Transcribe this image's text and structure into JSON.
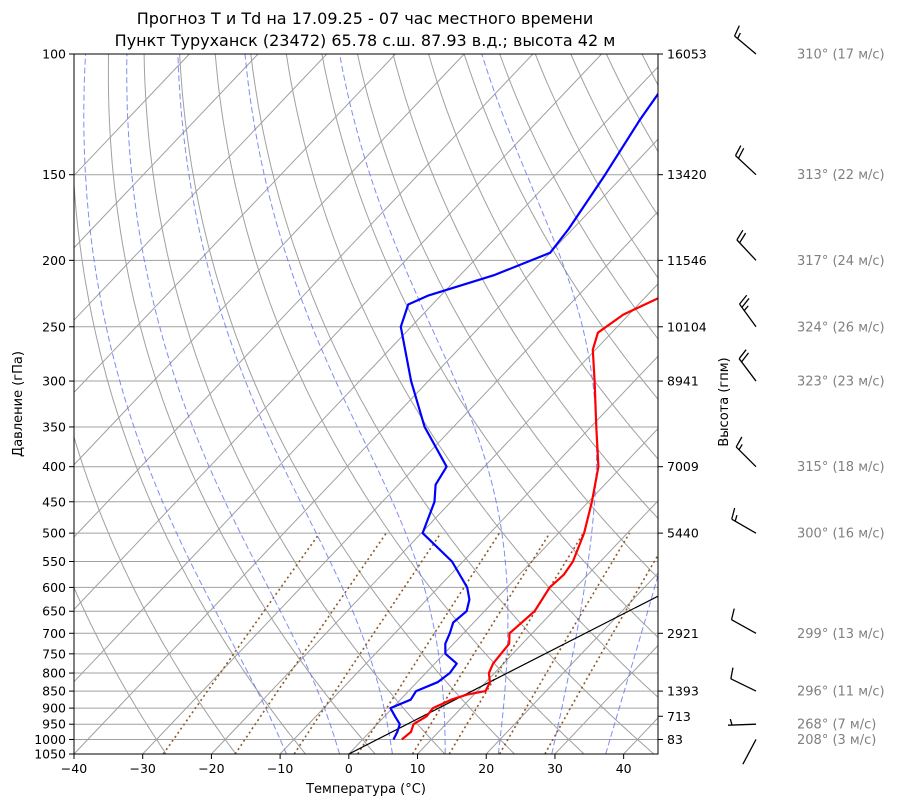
{
  "chart_data": {
    "type": "line",
    "subtype": "skew-T log-p sounding",
    "title": "Прогноз T и Td на 17.09.25 - 07 час местного времени",
    "subtitle": "Пункт Туруханск (23472) 65.78 с.ш. 87.93 в.д.; высота 42 м",
    "xlabel": "Температура (°C)",
    "ylabel": "Давление (гПа)",
    "y2label": "Высота (гпм)",
    "xlim": [
      -40,
      45
    ],
    "ylim": [
      1050,
      100
    ],
    "yscale": "log",
    "x_ticks": [
      -40,
      -30,
      -20,
      -10,
      0,
      10,
      20,
      30,
      40
    ],
    "y_ticks": [
      1050,
      1000,
      950,
      900,
      850,
      800,
      750,
      700,
      650,
      600,
      550,
      500,
      450,
      400,
      350,
      300,
      250,
      200,
      150,
      100
    ],
    "height_ticks": [
      {
        "p": 100,
        "h": "16053"
      },
      {
        "p": 150,
        "h": "13420"
      },
      {
        "p": 200,
        "h": "11546"
      },
      {
        "p": 250,
        "h": "10104"
      },
      {
        "p": 300,
        "h": "8941"
      },
      {
        "p": 400,
        "h": "7009"
      },
      {
        "p": 500,
        "h": "5440"
      },
      {
        "p": 700,
        "h": "2921"
      },
      {
        "p": 850,
        "h": "1393"
      },
      {
        "p": 925,
        "h": "713"
      },
      {
        "p": 1000,
        "h": "83"
      }
    ],
    "grid": true,
    "series": [
      {
        "color": "#ff0000",
        "points": [
          [
            1000,
            5.7
          ],
          [
            975,
            6.0
          ],
          [
            950,
            5.3
          ],
          [
            925,
            6.1
          ],
          [
            900,
            5.9
          ],
          [
            875,
            7.4
          ],
          [
            860,
            9.0
          ],
          [
            850,
            11.2
          ],
          [
            825,
            10.6
          ],
          [
            800,
            9.2
          ],
          [
            775,
            8.5
          ],
          [
            750,
            8.3
          ],
          [
            725,
            8.1
          ],
          [
            700,
            6.7
          ],
          [
            650,
            7.3
          ],
          [
            600,
            6.2
          ],
          [
            575,
            6.5
          ],
          [
            550,
            6.0
          ],
          [
            500,
            3.7
          ],
          [
            450,
            0.5
          ],
          [
            400,
            -3.4
          ],
          [
            350,
            -9.2
          ],
          [
            300,
            -15.8
          ],
          [
            270,
            -20.4
          ],
          [
            255,
            -22.0
          ],
          [
            240,
            -20.8
          ],
          [
            225,
            -17.5
          ],
          [
            210,
            -16.4
          ],
          [
            200,
            -16.1
          ],
          [
            175,
            -17.4
          ],
          [
            150,
            -18.8
          ],
          [
            125,
            -20.3
          ],
          [
            100,
            -21.0
          ]
        ]
      },
      {
        "color": "#0000ff",
        "points": [
          [
            1000,
            4.5
          ],
          [
            975,
            4.0
          ],
          [
            950,
            3.3
          ],
          [
            925,
            1.5
          ],
          [
            900,
            -0.3
          ],
          [
            875,
            1.5
          ],
          [
            850,
            1.1
          ],
          [
            825,
            3.0
          ],
          [
            800,
            3.5
          ],
          [
            775,
            3.2
          ],
          [
            750,
            0.2
          ],
          [
            725,
            -1.2
          ],
          [
            700,
            -2.0
          ],
          [
            675,
            -3.0
          ],
          [
            650,
            -2.6
          ],
          [
            625,
            -3.8
          ],
          [
            600,
            -5.8
          ],
          [
            550,
            -11.6
          ],
          [
            500,
            -19.8
          ],
          [
            450,
            -22.4
          ],
          [
            425,
            -24.6
          ],
          [
            400,
            -25.5
          ],
          [
            350,
            -34.2
          ],
          [
            300,
            -42.5
          ],
          [
            250,
            -51.5
          ],
          [
            232,
            -53.5
          ],
          [
            225,
            -51.8
          ],
          [
            210,
            -45.0
          ],
          [
            195,
            -40.0
          ],
          [
            180,
            -40.6
          ],
          [
            150,
            -42.8
          ],
          [
            125,
            -45.3
          ],
          [
            100,
            -47.7
          ]
        ]
      }
    ],
    "reference_line": {
      "color": "#000000",
      "from": [
        1050,
        0
      ],
      "to": [
        375,
        45
      ]
    },
    "wind": [
      {
        "p": 1000,
        "dir": 208,
        "speed": 3,
        "label": "208° (3 м/с)"
      },
      {
        "p": 950,
        "dir": 268,
        "speed": 7,
        "label": "268° (7 м/с)"
      },
      {
        "p": 850,
        "dir": 296,
        "speed": 11,
        "label": "296° (11 м/с)"
      },
      {
        "p": 700,
        "dir": 299,
        "speed": 13,
        "label": "299° (13 м/с)"
      },
      {
        "p": 500,
        "dir": 300,
        "speed": 16,
        "label": "300° (16 м/с)"
      },
      {
        "p": 400,
        "dir": 315,
        "speed": 18,
        "label": "315° (18 м/с)"
      },
      {
        "p": 300,
        "dir": 323,
        "speed": 23,
        "label": "323° (23 м/с)"
      },
      {
        "p": 250,
        "dir": 324,
        "speed": 26,
        "label": "324° (26 м/с)"
      },
      {
        "p": 200,
        "dir": 317,
        "speed": 24,
        "label": "317° (24 м/с)"
      },
      {
        "p": 150,
        "dir": 313,
        "speed": 22,
        "label": "313° (22 м/с)"
      },
      {
        "p": 100,
        "dir": 310,
        "speed": 17,
        "label": "310° (17 м/с)"
      }
    ],
    "colors": {
      "temperature": "#ff0000",
      "dewpoint": "#0000ff",
      "dry_adiabat": "#a0a0a0",
      "moist_adiabat": "#6a78f0",
      "mixing_ratio": "#8b5a2b",
      "isotherm": "#a0a0a0",
      "isobar": "#a0a0a0",
      "wind_label": "#808080"
    }
  }
}
